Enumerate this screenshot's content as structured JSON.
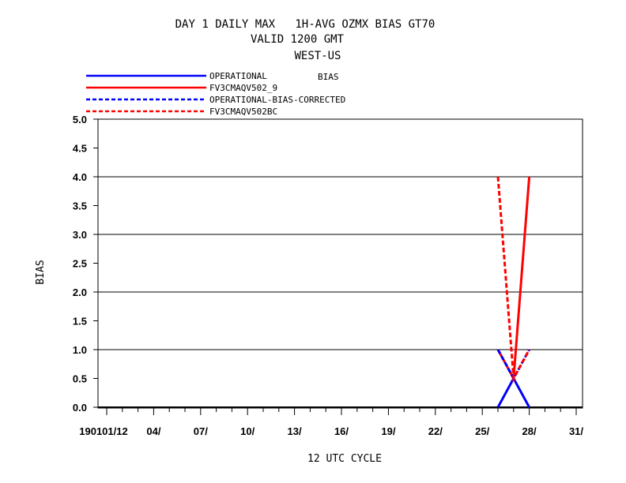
{
  "chart_data": {
    "type": "line",
    "title_lines": [
      "DAY 1 DAILY MAX   1H-AVG OZMX BIAS GT70",
      "VALID 1200 GMT",
      "WEST-US"
    ],
    "legend_title": "BIAS",
    "xlabel": "12 UTC CYCLE",
    "ylabel": "BIAS",
    "x_tick_labels": [
      "190101/12",
      "04/",
      "07/",
      "10/",
      "13/",
      "16/",
      "19/",
      "22/",
      "25/",
      "28/",
      "31/"
    ],
    "x_tick_days": [
      1,
      4,
      7,
      10,
      13,
      16,
      19,
      22,
      25,
      28,
      31
    ],
    "xlim": [
      0.5,
      31.5
    ],
    "ylim": [
      0.0,
      5.0
    ],
    "y_ticks": [
      0.0,
      0.5,
      1.0,
      1.5,
      2.0,
      2.5,
      3.0,
      3.5,
      4.0,
      4.5,
      5.0
    ],
    "y_tick_labels": [
      "0.0",
      "0.5",
      "1.0",
      "1.5",
      "2.0",
      "2.5",
      "3.0",
      "3.5",
      "4.0",
      "4.5",
      "5.0"
    ],
    "gridlines_y": [
      1.0,
      2.0,
      3.0,
      4.0
    ],
    "series": [
      {
        "name": "OPERATIONAL",
        "color": "#0000ff",
        "dash": "solid",
        "x": [
          26,
          27,
          28
        ],
        "y": [
          0.0,
          0.5,
          0.0
        ]
      },
      {
        "name": "FV3CMAQV502_9",
        "color": "#ff0000",
        "dash": "solid",
        "x": [
          26,
          27,
          28
        ],
        "y": [
          1.0,
          0.5,
          4.0
        ]
      },
      {
        "name": "OPERATIONAL-BIAS-CORRECTED",
        "color": "#0000ff",
        "dash": "dashed",
        "x": [
          26,
          27,
          28
        ],
        "y": [
          1.0,
          0.5,
          1.0
        ]
      },
      {
        "name": "FV3CMAQV502BC",
        "color": "#ff0000",
        "dash": "dashed",
        "x": [
          26,
          27,
          28
        ],
        "y": [
          4.0,
          0.5,
          1.0
        ]
      }
    ]
  }
}
